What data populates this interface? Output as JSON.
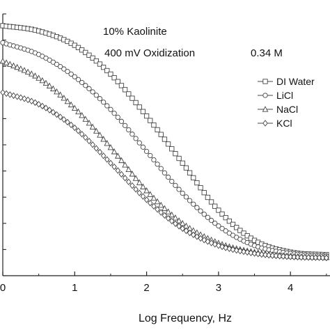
{
  "chart_data": {
    "type": "line",
    "xlabel": "Log Frequency, Hz",
    "ylabel": "",
    "xlim": [
      0,
      4.55
    ],
    "ylim": [
      0,
      1
    ],
    "x_ticks": [
      "0",
      "1",
      "2",
      "3",
      "4"
    ],
    "annotations": [
      "10% Kaolinite",
      "400 mV Oxidization",
      "0.34 M"
    ],
    "grid": false,
    "legend": "top-right",
    "series": [
      {
        "name": "DI Water",
        "marker": "square",
        "color": "#555555",
        "x": [
          0,
          0.5,
          1.0,
          1.5,
          2.0,
          2.5,
          3.0,
          3.5,
          4.0,
          4.5
        ],
        "values": [
          0.955,
          0.935,
          0.88,
          0.77,
          0.61,
          0.43,
          0.25,
          0.135,
          0.09,
          0.08
        ]
      },
      {
        "name": "LiCl",
        "marker": "circle",
        "color": "#555555",
        "x": [
          0,
          0.5,
          1.0,
          1.5,
          2.0,
          2.5,
          3.0,
          3.5,
          4.0,
          4.5
        ],
        "values": [
          0.89,
          0.845,
          0.76,
          0.635,
          0.475,
          0.315,
          0.19,
          0.115,
          0.085,
          0.075
        ]
      },
      {
        "name": "NaCl",
        "marker": "triangle",
        "color": "#555555",
        "x": [
          0,
          0.5,
          1.0,
          1.5,
          2.0,
          2.5,
          3.0,
          3.5,
          4.0,
          4.5
        ],
        "values": [
          0.82,
          0.755,
          0.64,
          0.49,
          0.325,
          0.2,
          0.125,
          0.09,
          0.075,
          0.07
        ]
      },
      {
        "name": "KCl",
        "marker": "diamond",
        "color": "#555555",
        "x": [
          0,
          0.5,
          1.0,
          1.5,
          2.0,
          2.5,
          3.0,
          3.5,
          4.0,
          4.5
        ],
        "values": [
          0.7,
          0.655,
          0.565,
          0.43,
          0.29,
          0.18,
          0.115,
          0.085,
          0.072,
          0.068
        ]
      }
    ]
  }
}
